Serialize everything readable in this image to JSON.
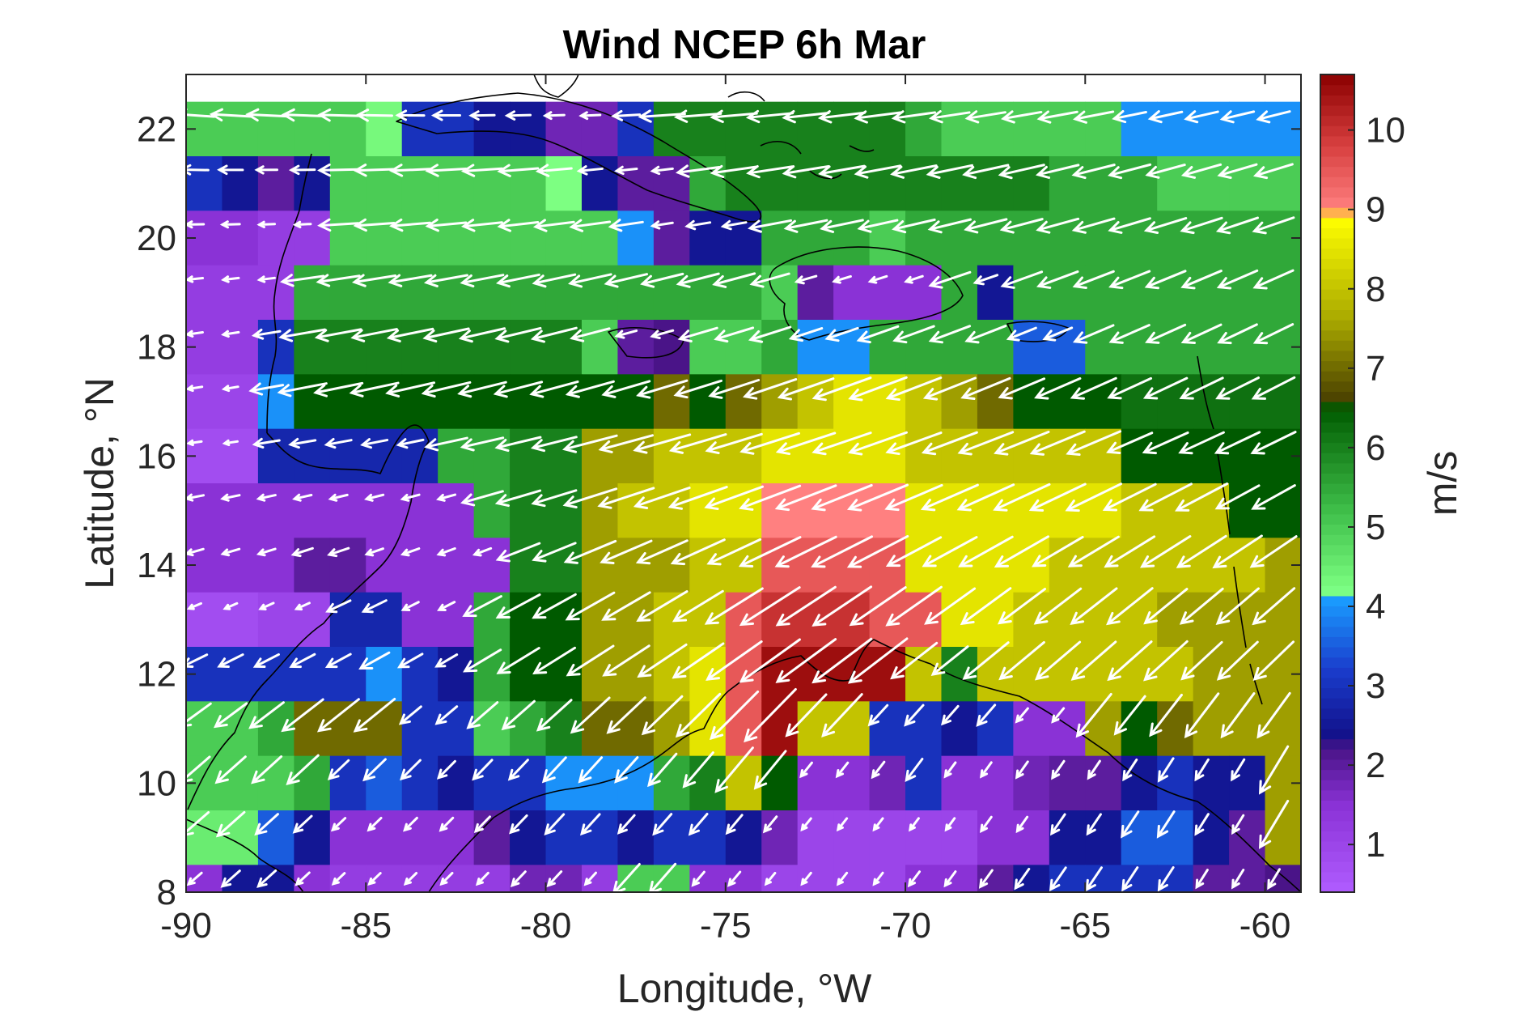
{
  "chart_data": {
    "type": "heatmap",
    "title": "Wind NCEP 6h Mar",
    "xlabel": "Longitude, °W",
    "ylabel": "Latitude, °N",
    "colorbar_label": "m/s",
    "xlim": [
      -90,
      -59
    ],
    "ylim": [
      8,
      23
    ],
    "x_ticks": [
      -90,
      -85,
      -80,
      -75,
      -70,
      -65,
      -60
    ],
    "y_ticks": [
      8,
      10,
      12,
      14,
      16,
      18,
      20,
      22
    ],
    "colorbar_range": [
      0.4,
      10.7
    ],
    "colorbar_ticks": [
      1,
      2,
      3,
      4,
      5,
      6,
      7,
      8,
      9,
      10
    ],
    "colormap": [
      {
        "value": 0.4,
        "color": "#b05cff"
      },
      {
        "value": 1.5,
        "color": "#8a32d6"
      },
      {
        "value": 2.2,
        "color": "#4a1488"
      },
      {
        "value": 2.4,
        "color": "#12128c"
      },
      {
        "value": 3.2,
        "color": "#1a3ccc"
      },
      {
        "value": 4.1,
        "color": "#1a9cff"
      },
      {
        "value": 4.2,
        "color": "#7dff82"
      },
      {
        "value": 5.2,
        "color": "#3fbf4a"
      },
      {
        "value": 6.5,
        "color": "#005a00"
      },
      {
        "value": 6.6,
        "color": "#4a4000"
      },
      {
        "value": 7.6,
        "color": "#a8a800"
      },
      {
        "value": 8.9,
        "color": "#ffff00"
      },
      {
        "value": 9.0,
        "color": "#ff8080"
      },
      {
        "value": 9.8,
        "color": "#d84040"
      },
      {
        "value": 10.7,
        "color": "#8c0000"
      }
    ],
    "grid": {
      "lon_start": -90,
      "lon_step": 1,
      "cols": 31,
      "lat_top": 22.5,
      "lat_step": 1,
      "rows": 15,
      "speed": [
        [
          5,
          5,
          5,
          5,
          5,
          4.3,
          3,
          3,
          2.5,
          2.5,
          1.8,
          1.8,
          3,
          6,
          6,
          6,
          6,
          6,
          6,
          6,
          5.5,
          5,
          5,
          5,
          5,
          5,
          4,
          4,
          4,
          4,
          4
        ],
        [
          3,
          2.5,
          2,
          2.5,
          5,
          5,
          5,
          5,
          5,
          5,
          4.2,
          2.5,
          2,
          2,
          5.5,
          6,
          6,
          6,
          6,
          6,
          6,
          6,
          6,
          6,
          5.5,
          5.5,
          5.5,
          5,
          5,
          5,
          5
        ],
        [
          1.5,
          1.5,
          1.2,
          1.2,
          5,
          5,
          5,
          5,
          5,
          5,
          5,
          5,
          4,
          2,
          2.5,
          2.5,
          5.5,
          5.5,
          5.5,
          5,
          5.5,
          5.5,
          5.5,
          5.5,
          5.5,
          5.5,
          5.5,
          5.5,
          5.5,
          5.5,
          5.5
        ],
        [
          1.2,
          1.2,
          1.2,
          5.5,
          5.5,
          5.5,
          5.5,
          5.5,
          5.5,
          5.5,
          5.5,
          5.5,
          5.5,
          5.5,
          5.5,
          5.5,
          5,
          2,
          1.5,
          1.5,
          1.5,
          5.5,
          2.5,
          5.5,
          5.5,
          5.5,
          5.5,
          5.5,
          5.5,
          5.5,
          5.5
        ],
        [
          1.2,
          1.2,
          3,
          6,
          6,
          6,
          6,
          6,
          6,
          6,
          6,
          5,
          2,
          2.2,
          5,
          5,
          5.5,
          4,
          4,
          5.5,
          5.5,
          5.5,
          5.5,
          3.5,
          3.5,
          5.5,
          5.5,
          5.5,
          5.5,
          5.5,
          5.5
        ],
        [
          1,
          1,
          4,
          6.5,
          6.5,
          6.5,
          6.5,
          6.5,
          6.5,
          6.5,
          6.5,
          6.5,
          6.5,
          7,
          6.5,
          7,
          7.5,
          8,
          8.5,
          8.5,
          8,
          7.5,
          7,
          6.5,
          6.5,
          6.5,
          6.2,
          6.2,
          6.2,
          6.2,
          6.2
        ],
        [
          0.8,
          0.8,
          2.8,
          2.8,
          2.8,
          2.8,
          2.8,
          5.5,
          5.5,
          6,
          6,
          7.5,
          7.5,
          8,
          8,
          8,
          8.5,
          8.5,
          8.5,
          8.5,
          8,
          8,
          8,
          8,
          8,
          8,
          6.5,
          6.5,
          6.5,
          6.5,
          6.5
        ],
        [
          1.5,
          1.5,
          1.5,
          1.5,
          1.5,
          1.5,
          1.5,
          1.5,
          5.5,
          6,
          6,
          7.5,
          8,
          8,
          8.5,
          8.5,
          9,
          9,
          9,
          9,
          8.5,
          8.5,
          8.5,
          8.5,
          8.5,
          8.5,
          8,
          8,
          8,
          6.5,
          6.5
        ],
        [
          1.5,
          1.5,
          1.5,
          2,
          2,
          1.5,
          1.5,
          1.5,
          1.5,
          6,
          6,
          7.5,
          7.5,
          7.5,
          8,
          8,
          9.5,
          9.5,
          9.5,
          9.5,
          8.5,
          8.5,
          8.5,
          8.5,
          8,
          8,
          8,
          8,
          8,
          8,
          7.5
        ],
        [
          0.8,
          0.8,
          1,
          1,
          2.8,
          2.8,
          1.5,
          1.5,
          5.5,
          6.5,
          6.5,
          7.5,
          7.5,
          8,
          8,
          9.5,
          10,
          10,
          10,
          9.5,
          9.5,
          8.5,
          8.5,
          8,
          8,
          8,
          8,
          7.5,
          7.5,
          7.5,
          7.5
        ],
        [
          3,
          3,
          3,
          3,
          3,
          4,
          3,
          2.5,
          5.5,
          6.5,
          6.5,
          7.5,
          7.5,
          8,
          8.5,
          9.5,
          10.5,
          10.5,
          10.5,
          10.5,
          8,
          6,
          8,
          8,
          8,
          8,
          8,
          8,
          7.5,
          7.5,
          7.5
        ],
        [
          5,
          5,
          5.5,
          7,
          7,
          7,
          3,
          3,
          5,
          5.5,
          6,
          7,
          7,
          7.5,
          8.5,
          9.5,
          10.5,
          8,
          8,
          3,
          3,
          2.5,
          3,
          1.5,
          1.5,
          7.5,
          6.5,
          7,
          7.5,
          7.5,
          7.5
        ],
        [
          5,
          5,
          5,
          5.5,
          3,
          3.5,
          3,
          2.5,
          3,
          3,
          4,
          4,
          4,
          5.5,
          6,
          8,
          6.5,
          1.5,
          1.5,
          1.8,
          3,
          1.5,
          1.5,
          1.8,
          2,
          2,
          2.5,
          3,
          2.5,
          2.5,
          7.5
        ],
        [
          4.5,
          4.5,
          3.5,
          2.5,
          1.5,
          1.5,
          1.5,
          1.5,
          2,
          2.5,
          3,
          3,
          2.5,
          3,
          3,
          2.5,
          1.8,
          1,
          1,
          1,
          1,
          1,
          1.5,
          1.5,
          2.5,
          2.5,
          3.5,
          3.5,
          2.5,
          2,
          7.5
        ],
        [
          1.5,
          2.5,
          2.5,
          1.5,
          1.2,
          1.2,
          1.2,
          1.2,
          1.2,
          1.8,
          1.8,
          1.2,
          5,
          5,
          1.5,
          1.5,
          1,
          1,
          1,
          1,
          1.5,
          1.5,
          2,
          2.5,
          3,
          3,
          3,
          3,
          2,
          2,
          2.2
        ]
      ]
    },
    "vectors": {
      "lon_start": -89.75,
      "lon_step": 1,
      "cols": 31,
      "lat_top": 22.25,
      "lat_step": 1,
      "rows": 15,
      "row_direction_deg": [
        185,
        188,
        190,
        195,
        197,
        198,
        197,
        200,
        205,
        212,
        215,
        225,
        230,
        230,
        230
      ],
      "description": "wind direction in degrees measured counter-clockwise from east (180 = westward, 270 = southward); arrow length proportional to speed"
    },
    "land_color": "#000000",
    "vector_color": "#ffffff"
  }
}
